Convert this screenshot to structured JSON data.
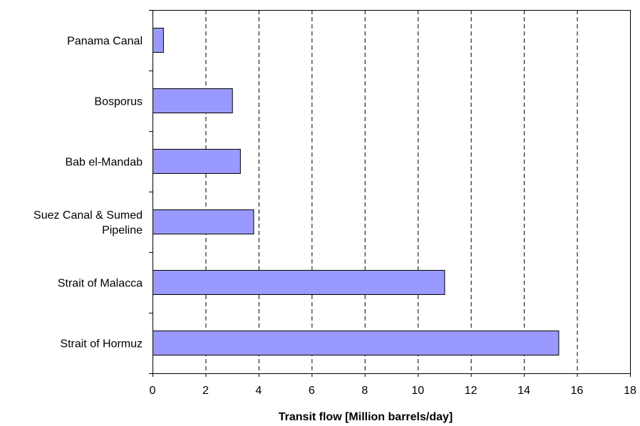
{
  "chart_data": {
    "type": "bar",
    "orientation": "horizontal",
    "categories": [
      "Panama Canal",
      "Bosporus",
      "Bab el-Mandab",
      "Suez Canal & Sumed Pipeline",
      "Strait of Malacca",
      "Strait of Hormuz"
    ],
    "category_label_lines": [
      [
        "Panama Canal"
      ],
      [
        "Bosporus"
      ],
      [
        "Bab el-Mandab"
      ],
      [
        "Suez Canal & Sumed",
        "Pipeline"
      ],
      [
        "Strait of Malacca"
      ],
      [
        "Strait of Hormuz"
      ]
    ],
    "values": [
      0.4,
      3.0,
      3.3,
      3.8,
      11.0,
      15.3
    ],
    "title": "",
    "xlabel": "Transit flow [Million barrels/day]",
    "ylabel": "",
    "xlim": [
      0,
      18
    ],
    "xticks": [
      0,
      2,
      4,
      6,
      8,
      10,
      12,
      14,
      16,
      18
    ],
    "grid": "vertical dashed",
    "legend": "none",
    "colors": {
      "bar_fill": "#9999ff",
      "bar_stroke": "#000000",
      "grid": "#000000",
      "axis": "#000000"
    }
  }
}
